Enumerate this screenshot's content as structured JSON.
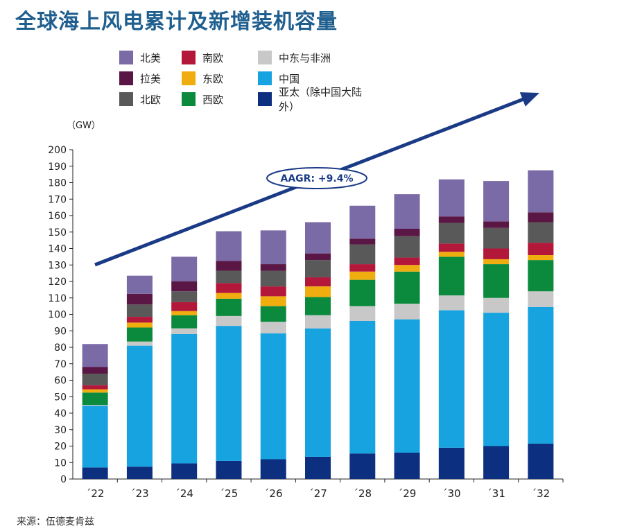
{
  "title": "全球海上风电累计及新增装机容量",
  "unit_label": "（GW）",
  "source": "来源：伍德麦肯兹",
  "annotation": "AAGR: +9.4%",
  "legend": [
    {
      "name": "北美",
      "color": "#7a6aa6"
    },
    {
      "name": "南欧",
      "color": "#b3173a"
    },
    {
      "name": "中东与非洲",
      "color": "#c8c8c8"
    },
    {
      "name": "拉美",
      "color": "#5a1644"
    },
    {
      "name": "东欧",
      "color": "#f0ad0f"
    },
    {
      "name": "中国",
      "color": "#17a3e0"
    },
    {
      "name": "北欧",
      "color": "#595959"
    },
    {
      "name": "西欧",
      "color": "#0b8a3d"
    },
    {
      "name": "亚太（除中国大陆外）",
      "color": "#0d2f80"
    }
  ],
  "chart_data": {
    "type": "bar",
    "stacked": true,
    "categories": [
      "´22",
      "´23",
      "´24",
      "´25",
      "´26",
      "´27",
      "´28",
      "´29",
      "´30",
      "´31",
      "´32"
    ],
    "ylim": [
      0,
      200
    ],
    "yticks": [
      0,
      10,
      20,
      30,
      40,
      50,
      60,
      70,
      80,
      90,
      100,
      110,
      120,
      130,
      140,
      150,
      160,
      170,
      180,
      190,
      200
    ],
    "ylabel": "（GW）",
    "series": [
      {
        "name": "亚太（除中国大陆外）",
        "color": "#0d2f80",
        "values": [
          7,
          7.5,
          9.5,
          11,
          12,
          13.5,
          15.5,
          16,
          19,
          20,
          21.5
        ]
      },
      {
        "name": "中国",
        "color": "#17a3e0",
        "values": [
          37.5,
          73.5,
          78.5,
          82,
          76.5,
          78,
          80.5,
          81,
          83.5,
          81,
          83
        ]
      },
      {
        "name": "中东与非洲",
        "color": "#c8c8c8",
        "values": [
          0.5,
          2.5,
          3.5,
          6,
          7,
          8,
          9,
          9.5,
          9,
          9,
          9.5
        ]
      },
      {
        "name": "西欧",
        "color": "#0b8a3d",
        "values": [
          7.5,
          8.5,
          8,
          10.5,
          9.5,
          11,
          16,
          19.5,
          23.5,
          20.5,
          19
        ]
      },
      {
        "name": "东欧",
        "color": "#f0ad0f",
        "values": [
          2,
          3,
          2.5,
          3.5,
          6,
          6.5,
          5,
          4,
          3,
          3,
          3
        ]
      },
      {
        "name": "南欧",
        "color": "#b3173a",
        "values": [
          2.5,
          3.5,
          5.5,
          6,
          6,
          5.5,
          4.5,
          4.5,
          5,
          6.5,
          7.5
        ]
      },
      {
        "name": "北欧",
        "color": "#595959",
        "values": [
          7,
          7.5,
          6.5,
          7.5,
          9.5,
          10.5,
          12,
          13,
          12.5,
          12.5,
          12.5
        ]
      },
      {
        "name": "拉美",
        "color": "#5a1644",
        "values": [
          4,
          6.5,
          6,
          6,
          4,
          4,
          3.5,
          4.5,
          4,
          4,
          6
        ]
      },
      {
        "name": "北美",
        "color": "#7a6aa6",
        "values": [
          14,
          11,
          15,
          18,
          20.5,
          19,
          20,
          21,
          22.5,
          24.5,
          25.5
        ]
      }
    ]
  }
}
